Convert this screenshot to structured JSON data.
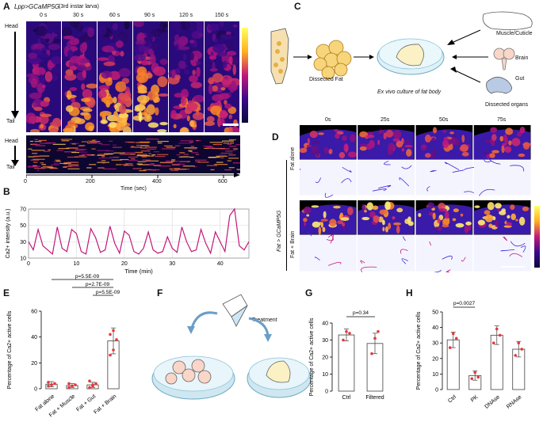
{
  "panels": {
    "A": {
      "label": "A",
      "genotype": "Lpp>GCaMP5G",
      "stage": "(3rd instar larva)",
      "times": [
        "0 s",
        "30 s",
        "60 s",
        "90 s",
        "120 s",
        "150 s"
      ],
      "head": "Head",
      "tail": "Tail",
      "kymo_ticks": [
        "0",
        "200",
        "400",
        "600"
      ],
      "kymo_xlabel": "Time (sec)"
    },
    "B": {
      "label": "B",
      "ylabel": "Ca2+ intensity (a.u.)",
      "xlabel": "Time (min)"
    },
    "C": {
      "label": "C",
      "dissected_fat": "Dissected Fat",
      "culture": "Ex vivo culture of fat body",
      "muscle": "Muscle/Cuticle",
      "brain": "Brain",
      "gut": "Gut",
      "organs": "Dissected organs"
    },
    "D": {
      "label": "D",
      "times": [
        "0s",
        "25s",
        "50s",
        "75s"
      ],
      "genotype": "Fat > GCaMP5G",
      "row1": "Fat alone",
      "row2": "Fat + Brain"
    },
    "E": {
      "label": "E"
    },
    "F": {
      "label": "F",
      "treatment": "Treatment"
    },
    "G": {
      "label": "G"
    },
    "H": {
      "label": "H"
    }
  },
  "colors": {
    "heat_dark": "#1a0a6b",
    "heat_mid": "#c2187a",
    "heat_hot": "#ffb11b",
    "trace": "#c2187a",
    "bar_point": "#e23a3a"
  },
  "chart_data": [
    {
      "id": "B",
      "type": "line",
      "title": "",
      "xlabel": "Time (min)",
      "ylabel": "Ca2+ intensity (a.u.)",
      "xlim": [
        0,
        46
      ],
      "ylim": [
        10,
        70
      ],
      "xticks": [
        0,
        10,
        20,
        30,
        40
      ],
      "yticks": [
        10,
        30,
        50,
        70
      ],
      "series": [
        {
          "name": "Ca2+ intensity",
          "x": [
            0,
            1,
            2,
            3,
            4,
            5,
            6,
            7,
            8,
            9,
            10,
            11,
            12,
            13,
            14,
            15,
            16,
            17,
            18,
            19,
            20,
            21,
            22,
            23,
            24,
            25,
            26,
            27,
            28,
            29,
            30,
            31,
            32,
            33,
            34,
            35,
            36,
            37,
            38,
            39,
            40,
            41,
            42,
            43,
            44,
            45,
            46
          ],
          "y": [
            30,
            20,
            45,
            25,
            20,
            15,
            48,
            22,
            18,
            45,
            40,
            18,
            15,
            46,
            35,
            17,
            20,
            49,
            28,
            16,
            43,
            38,
            18,
            15,
            22,
            42,
            20,
            16,
            18,
            36,
            22,
            17,
            48,
            30,
            18,
            20,
            45,
            28,
            16,
            42,
            30,
            18,
            62,
            70,
            25,
            20,
            30
          ]
        }
      ]
    },
    {
      "id": "E",
      "type": "bar",
      "ylabel": "Percentage of Ca2+ active cells",
      "categories": [
        "Fat alone",
        "Fat + Muscle",
        "Fat + Gut",
        "Fat + Brain"
      ],
      "values": [
        3.5,
        2.5,
        3.0,
        37
      ],
      "errors": [
        2,
        1.5,
        2,
        10
      ],
      "points": [
        [
          2,
          3,
          4,
          5,
          3
        ],
        [
          1,
          2,
          3,
          4,
          2
        ],
        [
          1,
          3,
          4,
          6,
          2
        ],
        [
          26,
          30,
          38,
          42,
          45
        ]
      ],
      "ylim": [
        0,
        60
      ],
      "yticks": [
        0,
        20,
        40,
        60
      ],
      "pvalues": [
        "p=5.5E-09",
        "p=2.7E-09",
        "p=5.5E-09"
      ]
    },
    {
      "id": "G",
      "type": "bar",
      "ylabel": "Percentage of Ca2+ active cells",
      "categories": [
        "Ctrl",
        "Filtered"
      ],
      "values": [
        33,
        28
      ],
      "errors": [
        3.5,
        6
      ],
      "points": [
        [
          30,
          35,
          34
        ],
        [
          22,
          31,
          35
        ]
      ],
      "ylim": [
        0,
        40
      ],
      "yticks": [
        0,
        10,
        20,
        30,
        40
      ],
      "pvalues": [
        "p=0.34"
      ]
    },
    {
      "id": "H",
      "type": "bar",
      "ylabel": "Percentage of Ca2+ active cells",
      "categories": [
        "Ctrl",
        "PK",
        "DNAse",
        "RNAse"
      ],
      "values": [
        32,
        9,
        35,
        26
      ],
      "errors": [
        5,
        3,
        6,
        5
      ],
      "points": [
        [
          27,
          36,
          33
        ],
        [
          7,
          11,
          8
        ],
        [
          30,
          39,
          35
        ],
        [
          22,
          30,
          26
        ]
      ],
      "ylim": [
        0,
        50
      ],
      "yticks": [
        0,
        10,
        20,
        30,
        40,
        50
      ],
      "pvalues": [
        "p=0.0027"
      ]
    }
  ]
}
